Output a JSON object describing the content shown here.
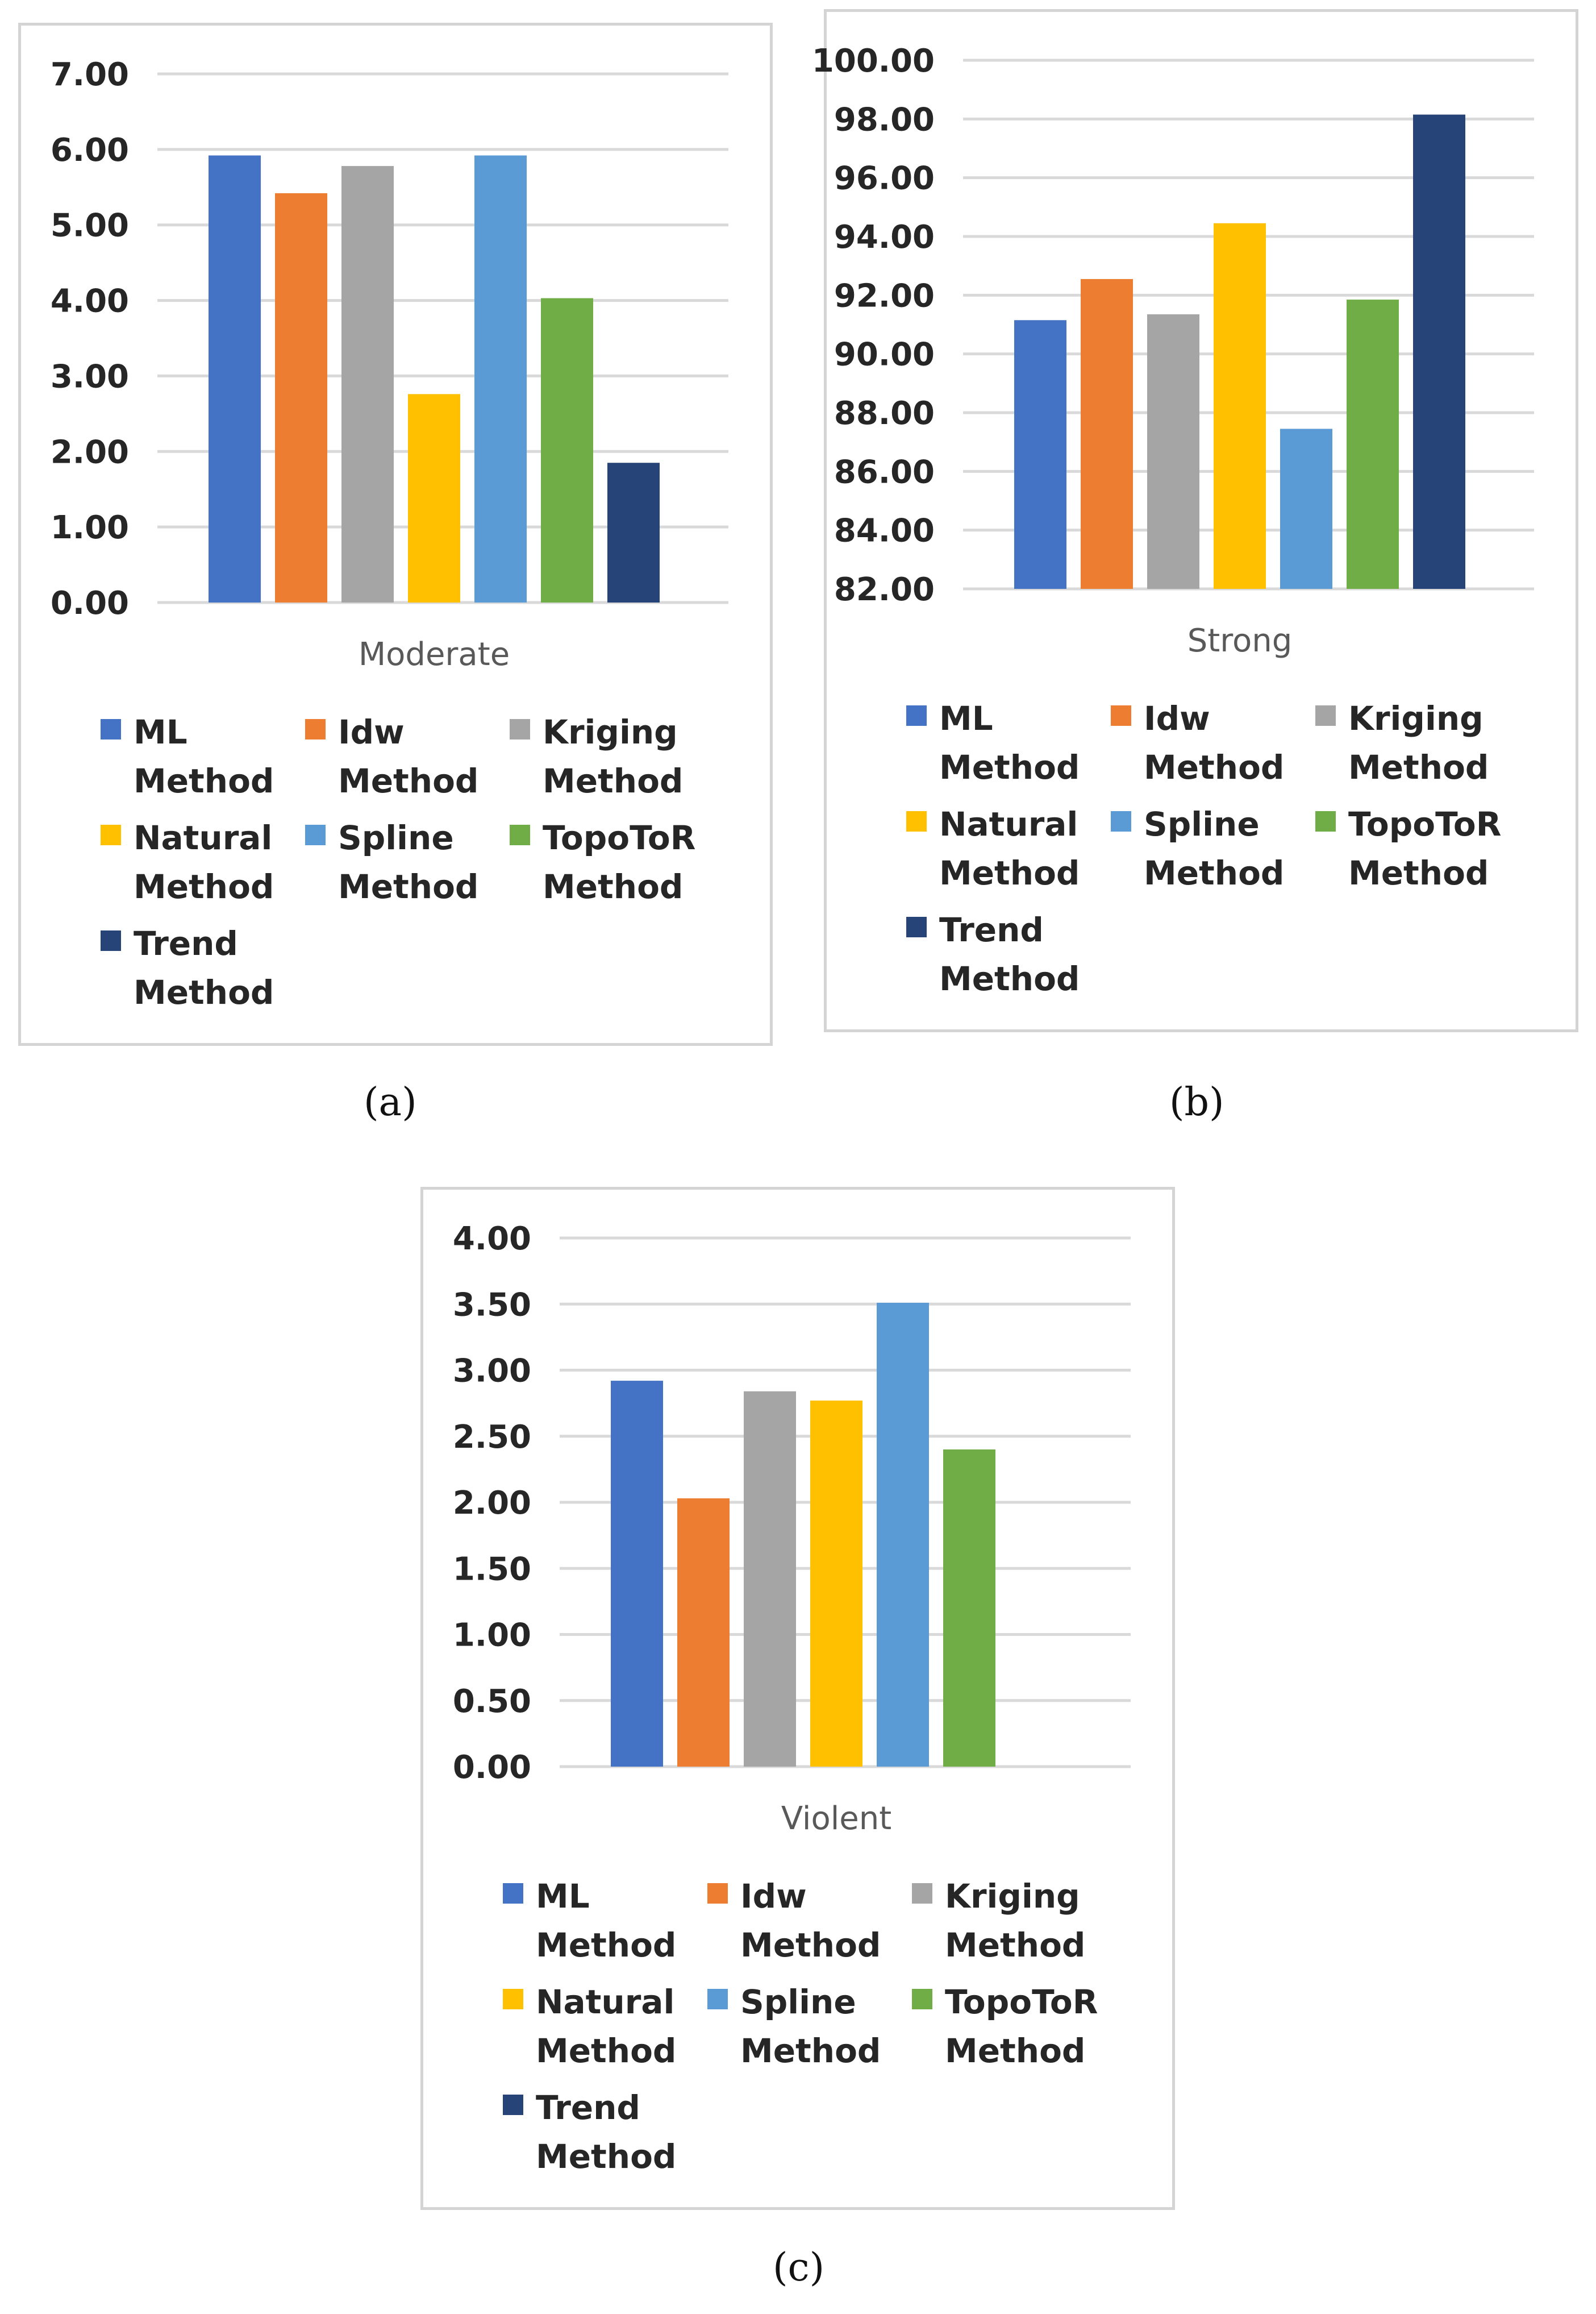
{
  "chart_data": [
    {
      "type": "bar",
      "panel": "(a)",
      "category": "Moderate",
      "ylim": [
        0,
        7
      ],
      "yticks": [
        "0.00",
        "1.00",
        "2.00",
        "3.00",
        "4.00",
        "5.00",
        "6.00",
        "7.00"
      ],
      "series": [
        {
          "name": "ML Method",
          "value": 5.92
        },
        {
          "name": "Idw Method",
          "value": 5.42
        },
        {
          "name": "Kriging Method",
          "value": 5.78
        },
        {
          "name": "Natural Method",
          "value": 2.76
        },
        {
          "name": "Spline Method",
          "value": 5.92
        },
        {
          "name": "TopoToR Method",
          "value": 4.03
        },
        {
          "name": "Trend Method",
          "value": 1.85
        }
      ]
    },
    {
      "type": "bar",
      "panel": "(b)",
      "category": "Strong",
      "ylim": [
        82,
        100
      ],
      "yticks": [
        "82.00",
        "84.00",
        "86.00",
        "88.00",
        "90.00",
        "92.00",
        "94.00",
        "96.00",
        "98.00",
        "100.00"
      ],
      "series": [
        {
          "name": "ML Method",
          "value": 91.15
        },
        {
          "name": "Idw Method",
          "value": 92.55
        },
        {
          "name": "Kriging Method",
          "value": 91.35
        },
        {
          "name": "Natural Method",
          "value": 94.45
        },
        {
          "name": "Spline Method",
          "value": 87.45
        },
        {
          "name": "TopoToR Method",
          "value": 91.85
        },
        {
          "name": "Trend Method",
          "value": 98.15
        }
      ]
    },
    {
      "type": "bar",
      "panel": "(c)",
      "category": "Violent",
      "ylim": [
        0,
        4
      ],
      "yticks": [
        "0.00",
        "0.50",
        "1.00",
        "1.50",
        "2.00",
        "2.50",
        "3.00",
        "3.50",
        "4.00"
      ],
      "series": [
        {
          "name": "ML Method",
          "value": 2.92
        },
        {
          "name": "Idw Method",
          "value": 2.03
        },
        {
          "name": "Kriging Method",
          "value": 2.84
        },
        {
          "name": "Natural Method",
          "value": 2.77
        },
        {
          "name": "Spline Method",
          "value": 3.51
        },
        {
          "name": "TopoToR Method",
          "value": 2.4
        },
        {
          "name": "Trend Method",
          "value": 0
        }
      ]
    }
  ],
  "legend": [
    {
      "name": "ML Method",
      "color": "#4472c4"
    },
    {
      "name": "Idw Method",
      "color": "#ed7d31"
    },
    {
      "name": "Kriging Method",
      "color": "#a5a5a5"
    },
    {
      "name": "Natural Method",
      "color": "#ffc000"
    },
    {
      "name": "Spline Method",
      "color": "#5b9bd5"
    },
    {
      "name": "TopoToR Method",
      "color": "#70ad47"
    },
    {
      "name": "Trend Method",
      "color": "#264478"
    }
  ],
  "captions": {
    "a": "(a)",
    "b": "(b)",
    "c": "(c)"
  }
}
